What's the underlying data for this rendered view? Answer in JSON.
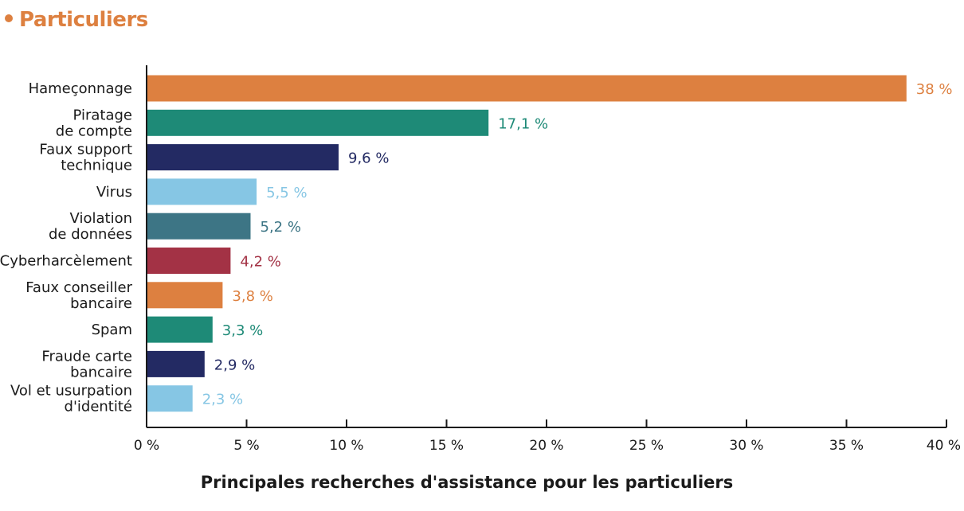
{
  "header": {
    "title": "Particuliers",
    "accent": "#dd8040"
  },
  "chart_data": {
    "type": "bar",
    "orientation": "horizontal",
    "title": "",
    "xlabel": "Principales recherches d'assistance pour les particuliers",
    "ylabel": "",
    "xlim": [
      0,
      40
    ],
    "x_ticks": [
      0,
      5,
      10,
      15,
      20,
      25,
      30,
      35,
      40
    ],
    "x_tick_labels": [
      "0 %",
      "5 %",
      "10 %",
      "15 %",
      "20 %",
      "25 %",
      "30 %",
      "35 %",
      "40 %"
    ],
    "grid": false,
    "categories": [
      [
        "Hameçonnage"
      ],
      [
        "Piratage",
        "de compte"
      ],
      [
        "Faux support",
        "technique"
      ],
      [
        "Virus"
      ],
      [
        "Violation",
        "de données"
      ],
      [
        "Cyberharcèlement"
      ],
      [
        "Faux conseiller",
        "bancaire"
      ],
      [
        "Spam"
      ],
      [
        "Fraude carte",
        "bancaire"
      ],
      [
        "Vol et usurpation",
        "d'identité"
      ]
    ],
    "values": [
      38,
      17.1,
      9.6,
      5.5,
      5.2,
      4.2,
      3.8,
      3.3,
      2.9,
      2.3
    ],
    "value_labels": [
      "38 %",
      "17,1 %",
      "9,6 %",
      "5,5 %",
      "5,2 %",
      "4,2 %",
      "3,8 %",
      "3,3 %",
      "2,9 %",
      "2,3 %"
    ],
    "colors": [
      "#dd8040",
      "#1e8a77",
      "#232a63",
      "#86c6e4",
      "#3d7585",
      "#a33245",
      "#dd8040",
      "#1e8a77",
      "#232a63",
      "#86c6e4"
    ]
  }
}
